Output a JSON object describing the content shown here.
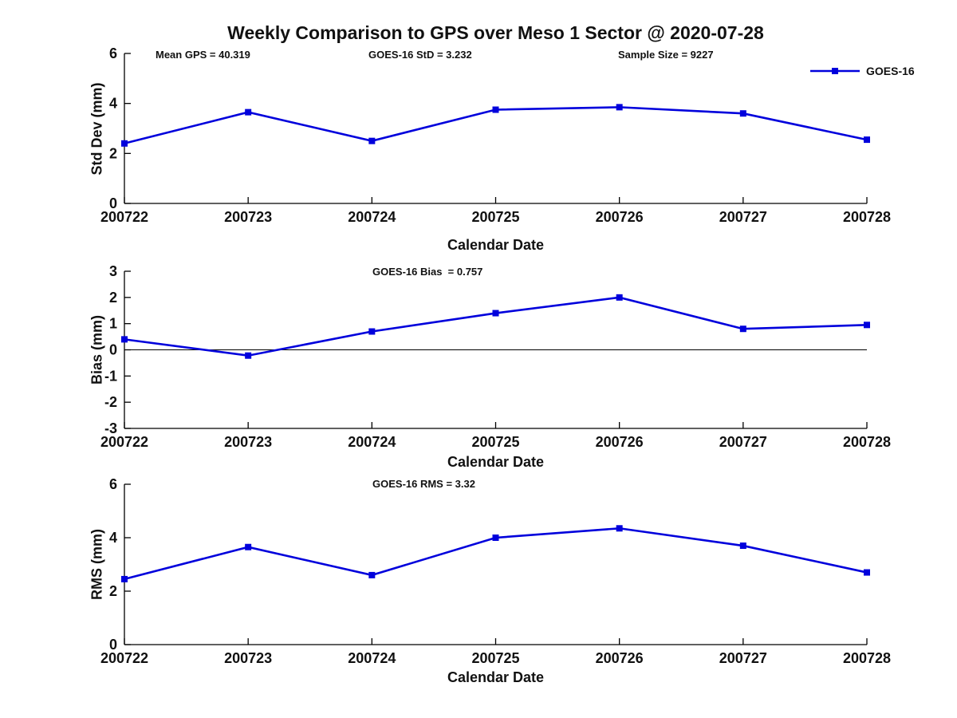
{
  "figure": {
    "title": "Weekly Comparison to GPS over Meso 1 Sector @ 2020-07-28",
    "background": "#ffffff",
    "line_color": "#0000DC",
    "axis_color": "#000000",
    "text_color": "#111111",
    "legend": {
      "label": "GOES-16"
    }
  },
  "chart_data": [
    {
      "type": "line",
      "ylabel": "Std Dev (mm)",
      "xlabel": "Calendar Date",
      "categories": [
        "200722",
        "200723",
        "200724",
        "200725",
        "200726",
        "200727",
        "200728"
      ],
      "series": [
        {
          "name": "GOES-16",
          "values": [
            2.4,
            3.65,
            2.5,
            3.75,
            3.85,
            3.6,
            2.55
          ]
        }
      ],
      "ylim": [
        0,
        6
      ],
      "yticks": [
        0,
        2,
        4,
        6
      ],
      "zero_line": false,
      "grid": false,
      "legend_position": "top-right",
      "annotations": [
        "Mean GPS = 40.319",
        "GOES-16 StD = 3.232",
        "Sample Size = 9227"
      ],
      "marker": "square"
    },
    {
      "type": "line",
      "ylabel": "Bias (mm)",
      "xlabel": "Calendar Date",
      "categories": [
        "200722",
        "200723",
        "200724",
        "200725",
        "200726",
        "200727",
        "200728"
      ],
      "series": [
        {
          "name": "GOES-16",
          "values": [
            0.4,
            -0.22,
            0.7,
            1.4,
            2.0,
            0.8,
            0.95
          ]
        }
      ],
      "ylim": [
        -3,
        3
      ],
      "yticks": [
        -3,
        -2,
        -1,
        0,
        1,
        2,
        3
      ],
      "zero_line": true,
      "grid": false,
      "legend_position": "none",
      "annotations": [
        "GOES-16 Bias  = 0.757"
      ],
      "marker": "square"
    },
    {
      "type": "line",
      "ylabel": "RMS (mm)",
      "xlabel": "Calendar Date",
      "categories": [
        "200722",
        "200723",
        "200724",
        "200725",
        "200726",
        "200727",
        "200728"
      ],
      "series": [
        {
          "name": "GOES-16",
          "values": [
            2.45,
            3.65,
            2.6,
            4.0,
            4.35,
            3.7,
            2.7
          ]
        }
      ],
      "ylim": [
        0,
        6
      ],
      "yticks": [
        0,
        2,
        4,
        6
      ],
      "zero_line": false,
      "grid": false,
      "legend_position": "none",
      "annotations": [
        "GOES-16 RMS = 3.32"
      ],
      "marker": "square"
    }
  ]
}
